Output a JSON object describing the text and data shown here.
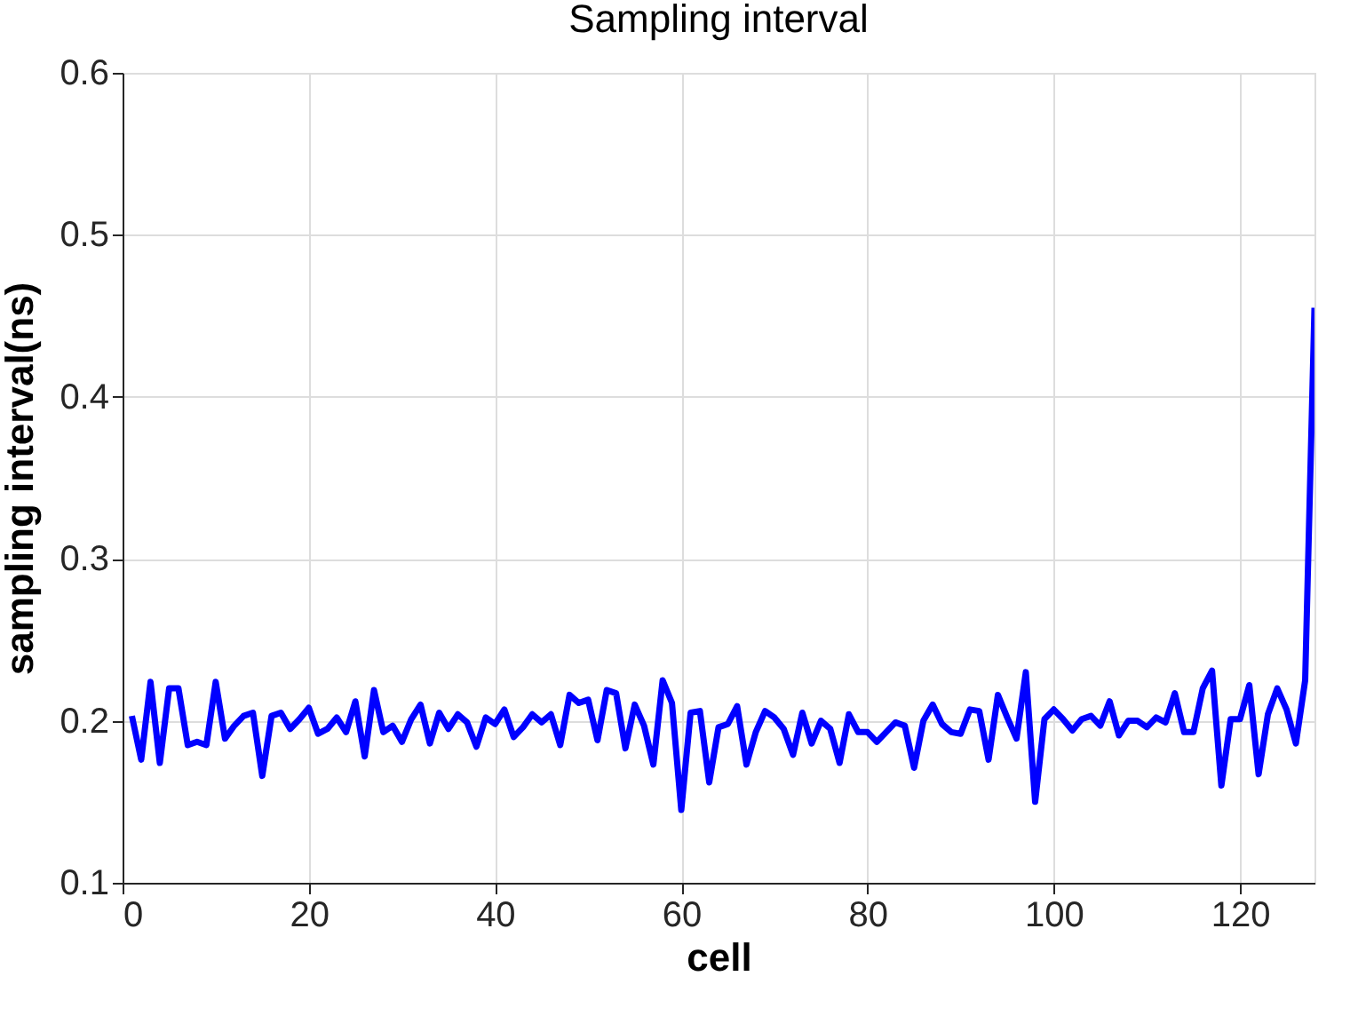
{
  "chart_data": {
    "type": "line",
    "title": "Sampling interval",
    "xlabel": "cell",
    "ylabel": "sampling interval(ns)",
    "x": [
      1,
      2,
      3,
      4,
      5,
      6,
      7,
      8,
      9,
      10,
      11,
      12,
      13,
      14,
      15,
      16,
      17,
      18,
      19,
      20,
      21,
      22,
      23,
      24,
      25,
      26,
      27,
      28,
      29,
      30,
      31,
      32,
      33,
      34,
      35,
      36,
      37,
      38,
      39,
      40,
      41,
      42,
      43,
      44,
      45,
      46,
      47,
      48,
      49,
      50,
      51,
      52,
      53,
      54,
      55,
      56,
      57,
      58,
      59,
      60,
      61,
      62,
      63,
      64,
      65,
      66,
      67,
      68,
      69,
      70,
      71,
      72,
      73,
      74,
      75,
      76,
      77,
      78,
      79,
      80,
      81,
      82,
      83,
      84,
      85,
      86,
      87,
      88,
      89,
      90,
      91,
      92,
      93,
      94,
      95,
      96,
      97,
      98,
      99,
      100,
      101,
      102,
      103,
      104,
      105,
      106,
      107,
      108,
      109,
      110,
      111,
      112,
      113,
      114,
      115,
      116,
      117,
      118,
      119,
      120,
      121,
      122,
      123,
      124,
      125,
      126,
      127,
      128
    ],
    "series": [
      {
        "color": "#0000ff",
        "values": [
          0.203,
          0.176,
          0.224,
          0.174,
          0.22,
          0.22,
          0.185,
          0.187,
          0.185,
          0.224,
          0.189,
          0.197,
          0.203,
          0.205,
          0.166,
          0.203,
          0.205,
          0.195,
          0.201,
          0.208,
          0.192,
          0.195,
          0.202,
          0.193,
          0.212,
          0.178,
          0.219,
          0.193,
          0.197,
          0.187,
          0.201,
          0.21,
          0.186,
          0.205,
          0.195,
          0.204,
          0.199,
          0.184,
          0.202,
          0.198,
          0.207,
          0.19,
          0.196,
          0.204,
          0.199,
          0.204,
          0.185,
          0.216,
          0.211,
          0.213,
          0.188,
          0.219,
          0.217,
          0.183,
          0.21,
          0.197,
          0.173,
          0.225,
          0.211,
          0.145,
          0.205,
          0.206,
          0.162,
          0.196,
          0.198,
          0.209,
          0.173,
          0.193,
          0.206,
          0.202,
          0.195,
          0.179,
          0.205,
          0.186,
          0.2,
          0.195,
          0.174,
          0.204,
          0.193,
          0.193,
          0.187,
          0.193,
          0.199,
          0.197,
          0.171,
          0.2,
          0.21,
          0.198,
          0.193,
          0.192,
          0.207,
          0.206,
          0.176,
          0.216,
          0.202,
          0.189,
          0.23,
          0.15,
          0.201,
          0.207,
          0.201,
          0.194,
          0.201,
          0.203,
          0.197,
          0.212,
          0.191,
          0.2,
          0.2,
          0.196,
          0.202,
          0.199,
          0.217,
          0.193,
          0.193,
          0.22,
          0.231,
          0.16,
          0.201,
          0.201,
          0.222,
          0.167,
          0.204,
          0.22,
          0.207,
          0.186,
          0.225,
          0.455
        ]
      }
    ],
    "xlim": [
      0,
      128
    ],
    "xticks": [
      0,
      20,
      40,
      60,
      80,
      100,
      120
    ],
    "ylim": [
      0.1,
      0.6
    ],
    "yticks": [
      0.1,
      0.2,
      0.3,
      0.4,
      0.5,
      0.6
    ],
    "grid": true,
    "line_style": "solid",
    "marker": "none"
  }
}
